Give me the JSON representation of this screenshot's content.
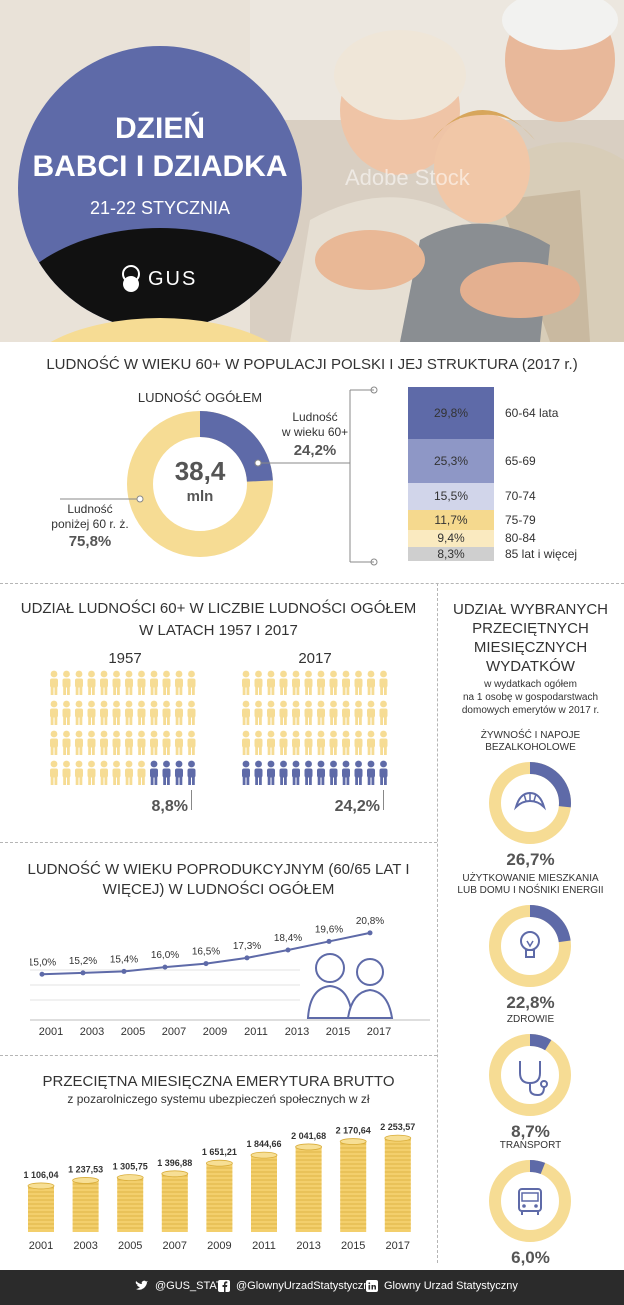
{
  "hero": {
    "title_line1": "DZIEŃ",
    "title_line2": "BABCI I DZIADKA",
    "date": "21-22 STYCZNIA",
    "logo_text": "GUS",
    "watermark": "Adobe Stock"
  },
  "population_section": {
    "title": "LUDNOŚĆ W WIEKU 60+ W POPULACJI POLSKI I JEJ STRUKTURA (2017 r.)",
    "total_label": "LUDNOŚĆ OGÓŁEM",
    "total_value": "38,4",
    "total_unit": "mln",
    "over60_label_line1": "Ludność",
    "over60_label_line2": "w wieku 60+",
    "over60_value": "24,2%",
    "under60_label_line1": "Ludność",
    "under60_label_line2": "poniżej 60 r. ż.",
    "under60_value": "75,8%",
    "structure": [
      {
        "pct": "29,8%",
        "label": "60-64 lata",
        "value": 29.8,
        "color": "#5e6aa8"
      },
      {
        "pct": "25,3%",
        "label": "65-69",
        "value": 25.3,
        "color": "#8e97c6"
      },
      {
        "pct": "15,5%",
        "label": "70-74",
        "value": 15.5,
        "color": "#d1d5ea"
      },
      {
        "pct": "11,7%",
        "label": "75-79",
        "value": 11.7,
        "color": "#f5d98e"
      },
      {
        "pct": "9,4%",
        "label": "80-84",
        "value": 9.4,
        "color": "#faeac0"
      },
      {
        "pct": "8,3%",
        "label": "85 lat i więcej",
        "value": 8.3,
        "color": "#cfcfcf"
      }
    ],
    "colors": {
      "blue": "#5e6aa8",
      "yellow": "#f6dc94"
    }
  },
  "share_section": {
    "title_line1": "UDZIAŁ LUDNOŚCI 60+ W LICZBIE LUDNOŚCI OGÓŁEM",
    "title_line2": "W LATACH 1957 I 2017",
    "year1": "1957",
    "value1": "8,8%",
    "year2": "2017",
    "value2": "24,2%"
  },
  "chart_data": [
    {
      "type": "line",
      "title": "LUDNOŚĆ W WIEKU POPRODUKCYJNYM (60/65 LAT I WIĘCEJ) W LUDNOŚCI OGÓŁEM",
      "x": [
        "2001",
        "2003",
        "2005",
        "2007",
        "2009",
        "2011",
        "2013",
        "2015",
        "2017"
      ],
      "values": [
        15.0,
        15.2,
        15.4,
        16.0,
        16.5,
        17.3,
        18.4,
        19.6,
        20.8
      ],
      "labels": [
        "15,0%",
        "15,2%",
        "15,4%",
        "16,0%",
        "16,5%",
        "17,3%",
        "18,4%",
        "19,6%",
        "20,8%"
      ]
    },
    {
      "type": "bar",
      "title": "PRZECIĘTNA MIESIĘCZNA EMERYTURA BRUTTO",
      "subtitle": "z pozarolniczego systemu ubezpieczeń społecznych w zł",
      "categories": [
        "2001",
        "2003",
        "2005",
        "2007",
        "2009",
        "2011",
        "2013",
        "2015",
        "2017"
      ],
      "values": [
        1106.04,
        1237.53,
        1305.75,
        1396.88,
        1651.21,
        1844.66,
        2041.68,
        2170.64,
        2253.57
      ],
      "labels": [
        "1 106,04",
        "1 237,53",
        "1 305,75",
        "1 396,88",
        "1 651,21",
        "1 844,66",
        "2 041,68",
        "2 170,64",
        "2 253,57"
      ]
    }
  ],
  "expenses_section": {
    "title_lines": [
      "UDZIAŁ WYBRANYCH",
      "PRZECIĘTNYCH",
      "MIESIĘCZNYCH",
      "WYDATKÓW"
    ],
    "subtitle_lines": [
      "w wydatkach ogółem",
      "na 1 osobę w gospodarstwach",
      "domowych emerytów w 2017 r."
    ],
    "items": [
      {
        "label_lines": [
          "ŻYWNOŚĆ I NAPOJE",
          "BEZALKOHOLOWE"
        ],
        "value": "26,7%",
        "fraction": 0.267,
        "icon": "croissant-icon"
      },
      {
        "label_lines": [
          "UŻYTKOWANIE MIESZKANIA",
          "LUB DOMU I NOŚNIKI ENERGII"
        ],
        "value": "22,8%",
        "fraction": 0.228,
        "icon": "lightbulb-icon"
      },
      {
        "label_lines": [
          "ZDROWIE"
        ],
        "value": "8,7%",
        "fraction": 0.087,
        "icon": "stethoscope-icon"
      },
      {
        "label_lines": [
          "TRANSPORT"
        ],
        "value": "6,0%",
        "fraction": 0.06,
        "icon": "bus-icon"
      }
    ]
  },
  "footer": {
    "twitter": "@GUS_STAT",
    "facebook": "@GlownyUrzadStatystyczny",
    "linkedin": "Glowny Urzad Statystyczny"
  }
}
